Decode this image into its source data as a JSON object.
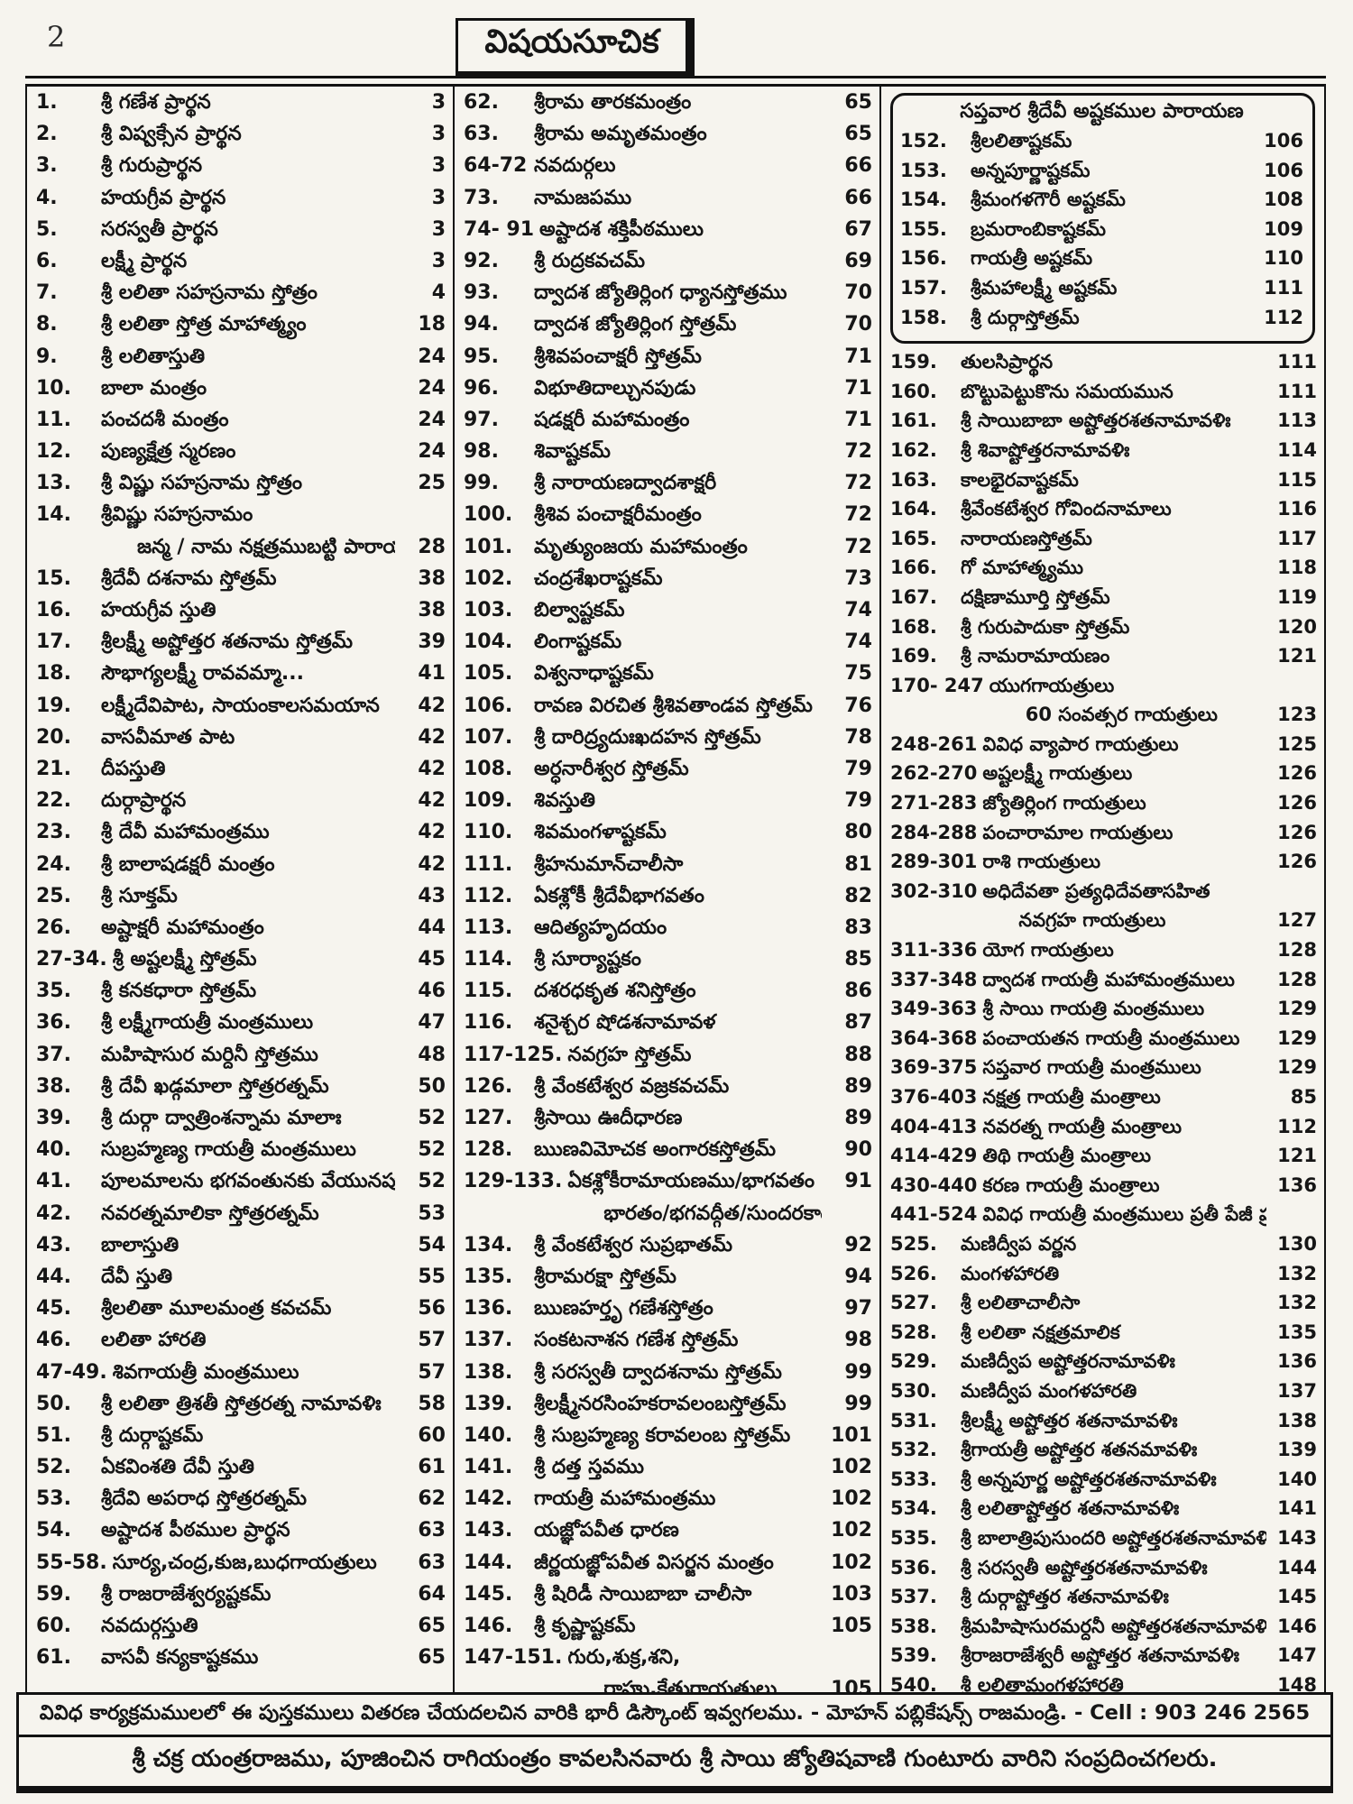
{
  "page": {
    "number": "2",
    "title": "విషయసూచిక"
  },
  "columns": {
    "col1": {
      "items": [
        {
          "n": "1.",
          "t": "శ్రీ గణేశ ప్రార్థన",
          "p": "3"
        },
        {
          "n": "2.",
          "t": "శ్రీ విష్వక్సేన ప్రార్థన",
          "p": "3"
        },
        {
          "n": "3.",
          "t": "శ్రీ గురుప్రార్థన",
          "p": "3"
        },
        {
          "n": "4.",
          "t": "హయగ్రీవ ప్రార్థన",
          "p": "3"
        },
        {
          "n": "5.",
          "t": "సరస్వతీ ప్రార్థన",
          "p": "3"
        },
        {
          "n": "6.",
          "t": "లక్ష్మీ ప్రార్థన",
          "p": "3"
        },
        {
          "n": "7.",
          "t": "శ్రీ లలితా సహస్రనామ స్తోత్రం",
          "p": "4"
        },
        {
          "n": "8.",
          "t": "శ్రీ లలితా స్తోత్ర మాహాత్మ్యం",
          "p": "18"
        },
        {
          "n": "9.",
          "t": "శ్రీ లలితాస్తుతి",
          "p": "24"
        },
        {
          "n": "10.",
          "t": "బాలా మంత్రం",
          "p": "24"
        },
        {
          "n": "11.",
          "t": "పంచదశీ మంత్రం",
          "p": "24"
        },
        {
          "n": "12.",
          "t": "పుణ్యక్షేత్ర స్మరణం",
          "p": "24"
        },
        {
          "n": "13.",
          "t": "శ్రీ విష్ణు సహస్రనామ స్తోత్రం",
          "p": "25"
        },
        {
          "n": "14.",
          "t": "శ్రీవిష్ణు సహస్రనామం",
          "p": "",
          "t2": "జన్మ / నామ నక్షత్రముబట్టి పారాయణ",
          "p2": "28"
        },
        {
          "n": "15.",
          "t": "శ్రీదేవీ  దశనామ స్తోత్రమ్",
          "p": "38"
        },
        {
          "n": "16.",
          "t": "హయగ్రీవ స్తుతి",
          "p": "38"
        },
        {
          "n": "17.",
          "t": "శ్రీలక్ష్మీ అష్టోత్తర శతనామ స్తోత్రమ్",
          "p": "39"
        },
        {
          "n": "18.",
          "t": "సౌభాగ్యలక్ష్మీ రావవమ్మా...",
          "p": "41"
        },
        {
          "n": "19.",
          "t": "లక్ష్మీదేవిపాట, సాయంకాలసమయాన",
          "p": "42"
        },
        {
          "n": "20.",
          "t": "వాసవీమాత పాట",
          "p": "42"
        },
        {
          "n": "21.",
          "t": "దీపస్తుతి",
          "p": "42"
        },
        {
          "n": "22.",
          "t": "దుర్గాప్రార్థన",
          "p": "42"
        },
        {
          "n": "23.",
          "t": "శ్రీ దేవీ మహామంత్రము",
          "p": "42"
        },
        {
          "n": "24.",
          "t": "శ్రీ బాలాషడక్షరీ మంత్రం",
          "p": "42"
        },
        {
          "n": "25.",
          "t": "శ్రీ సూక్తమ్",
          "p": "43"
        },
        {
          "n": "26.",
          "t": "అష్టాక్షరీ మహామంత్రం",
          "p": "44"
        },
        {
          "n": "27-34.",
          "t": "శ్రీ అష్టలక్ష్మీ స్తోత్రమ్",
          "p": "45"
        },
        {
          "n": "35.",
          "t": "శ్రీ కనకధారా స్తోత్రమ్",
          "p": "46"
        },
        {
          "n": "36.",
          "t": "శ్రీ లక్ష్మీగాయత్రీ మంత్రములు",
          "p": "47"
        },
        {
          "n": "37.",
          "t": "మహిషాసుర మర్దినీ స్తోత్రము",
          "p": "48"
        },
        {
          "n": "38.",
          "t": "శ్రీ దేవీ ఖడ్గమాలా స్తోత్రరత్నమ్",
          "p": "50"
        },
        {
          "n": "39.",
          "t": "శ్రీ దుర్గా ద్వాత్రింశన్నామ మాలాః",
          "p": "52"
        },
        {
          "n": "40.",
          "t": "సుబ్రహ్మణ్య గాయత్రీ మంత్రములు",
          "p": "52"
        },
        {
          "n": "41.",
          "t": "పూలమాలను భగవంతునకు వేయునపుడు",
          "p": "52"
        },
        {
          "n": "42.",
          "t": "నవరత్నమాలికా స్తోత్రరత్నమ్",
          "p": "53"
        },
        {
          "n": "43.",
          "t": "బాలాస్తుతి",
          "p": "54"
        },
        {
          "n": "44.",
          "t": "దేవీ స్తుతి",
          "p": "55"
        },
        {
          "n": "45.",
          "t": "శ్రీలలితా మూలమంత్ర కవచమ్",
          "p": "56"
        },
        {
          "n": "46.",
          "t": "లలితా హారతి",
          "p": "57"
        },
        {
          "n": "47-49.",
          "t": "శివగాయత్రీ మంత్రములు",
          "p": "57"
        },
        {
          "n": "50.",
          "t": "శ్రీ లలితా త్రిశతీ స్తోత్రరత్న నామావళిః",
          "p": "58"
        },
        {
          "n": "51.",
          "t": "శ్రీ దుర్గాష్టకమ్",
          "p": "60"
        },
        {
          "n": "52.",
          "t": "ఏకవింశతి దేవీ స్తుతి",
          "p": "61"
        },
        {
          "n": "53.",
          "t": "శ్రీదేవి అపరాధ స్తోత్రరత్నమ్",
          "p": "62"
        },
        {
          "n": "54.",
          "t": "అష్టాదశ పీఠముల ప్రార్థన",
          "p": "63"
        },
        {
          "n": "55-58.",
          "t": "సూర్య,చంద్ర,కుజ,బుధగాయత్రులు",
          "p": "63"
        },
        {
          "n": "59.",
          "t": "శ్రీ రాజరాజేశ్వర్యష్టకమ్",
          "p": "64"
        },
        {
          "n": "60.",
          "t": "నవదుర్గస్తుతి",
          "p": "65"
        },
        {
          "n": "61.",
          "t": "వాసవీ కన్యకాష్టకము",
          "p": "65"
        }
      ]
    },
    "col2": {
      "items": [
        {
          "n": "62.",
          "t": "శ్రీరామ తారకమంత్రం",
          "p": "65"
        },
        {
          "n": "63.",
          "t": "శ్రీరామ అమృతమంత్రం",
          "p": "65"
        },
        {
          "n": "64-72",
          "t": "నవదుర్గలు",
          "p": "66"
        },
        {
          "n": "73.",
          "t": "నామజపము",
          "p": "66"
        },
        {
          "n": "74- 91",
          "t": "అష్టాదశ శక్తిపీఠములు",
          "p": "67"
        },
        {
          "n": "92.",
          "t": "శ్రీ రుద్రకవచమ్",
          "p": "69"
        },
        {
          "n": "93.",
          "t": "ద్వాదశ జ్యోతిర్లింగ ధ్యానస్తోత్రము",
          "p": "70"
        },
        {
          "n": "94.",
          "t": "ద్వాదశ జ్యోతిర్లింగ స్తోత్రమ్",
          "p": "70"
        },
        {
          "n": "95.",
          "t": "శ్రీశివపంచాక్షరీ స్తోత్రమ్",
          "p": "71"
        },
        {
          "n": "96.",
          "t": "విభూతిదాల్చునపుడు",
          "p": "71"
        },
        {
          "n": "97.",
          "t": "షడక్షరీ మహామంత్రం",
          "p": "71"
        },
        {
          "n": "98.",
          "t": "శివాష్టకమ్",
          "p": "72"
        },
        {
          "n": "99.",
          "t": "శ్రీ నారాయణద్వాదశాక్షరీ",
          "p": "72"
        },
        {
          "n": "100.",
          "t": "శ్రీశివ పంచాక్షరీమంత్రం",
          "p": "72"
        },
        {
          "n": "101.",
          "t": "మృత్యుంజయ మహామంత్రం",
          "p": "72"
        },
        {
          "n": "102.",
          "t": "చంద్రశేఖరాష్టకమ్",
          "p": "73"
        },
        {
          "n": "103.",
          "t": "బిల్వాష్టకమ్",
          "p": "74"
        },
        {
          "n": "104.",
          "t": "లింగాష్టకమ్",
          "p": "74"
        },
        {
          "n": "105.",
          "t": "విశ్వనాధాష్టకమ్",
          "p": "75"
        },
        {
          "n": "106.",
          "t": "రావణ విరచిత శ్రీశివతాండవ స్తోత్రమ్",
          "p": "76"
        },
        {
          "n": "107.",
          "t": "శ్రీ దారిద్ర్యదుఃఖదహన స్తోత్రమ్",
          "p": "78"
        },
        {
          "n": "108.",
          "t": "అర్ధనారీశ్వర స్తోత్రమ్",
          "p": "79"
        },
        {
          "n": "109.",
          "t": "శివస్తుతి",
          "p": "79"
        },
        {
          "n": "110.",
          "t": "శివమంగళాష్టకమ్",
          "p": "80"
        },
        {
          "n": "111.",
          "t": "శ్రీహనుమాన్‌చాలీసా",
          "p": "81"
        },
        {
          "n": "112.",
          "t": "ఏకశ్లోకీ శ్రీదేవీభాగవతం",
          "p": "82"
        },
        {
          "n": "113.",
          "t": "ఆదిత్యహృదయం",
          "p": "83"
        },
        {
          "n": "114.",
          "t": "శ్రీ సూర్యాష్టకం",
          "p": "85"
        },
        {
          "n": "115.",
          "t": "దశరధకృత శనిస్తోత్రం",
          "p": "86"
        },
        {
          "n": "116.",
          "t": "శనైశ్చర షోడశనామావళ",
          "p": "87"
        },
        {
          "n": "117-125.",
          "t": "నవగ్రహ స్తోత్రమ్",
          "p": "88"
        },
        {
          "n": "126.",
          "t": "శ్రీ వేంకటేశ్వర వజ్రకవచమ్",
          "p": "89"
        },
        {
          "n": "127.",
          "t": "శ్రీసాయి ఊదీధారణ",
          "p": "89"
        },
        {
          "n": "128.",
          "t": "ఋణవిమోచక అంగారకస్తోత్రమ్",
          "p": "90"
        },
        {
          "n": "129-133.",
          "t": "ఏకశ్లోకీరామాయణము/భాగవతం",
          "p": "91",
          "t2": "భారతం/భగవద్గీత/సుందరకాండ",
          "p2": ""
        },
        {
          "n": "134.",
          "t": "శ్రీ వేంకటేశ్వర సుప్రభాతమ్",
          "p": "92"
        },
        {
          "n": "135.",
          "t": "శ్రీరామరక్షా స్తోత్రమ్",
          "p": "94"
        },
        {
          "n": "136.",
          "t": "ఋణహర్తృ గణేశస్తోత్రం",
          "p": "97"
        },
        {
          "n": "137.",
          "t": "సంకటనాశన గణేశ స్తోత్రమ్",
          "p": "98"
        },
        {
          "n": "138.",
          "t": "శ్రీ సరస్వతీ ద్వాదశనామ స్తోత్రమ్",
          "p": "99"
        },
        {
          "n": "139.",
          "t": "శ్రీలక్ష్మీనరసింహకరావలంబస్తోత్రమ్",
          "p": "99"
        },
        {
          "n": "140.",
          "t": "శ్రీ సుబ్రహ్మణ్య కరావలంబ స్తోత్రమ్",
          "p": "101"
        },
        {
          "n": "141.",
          "t": "శ్రీ దత్త స్తవము",
          "p": "102"
        },
        {
          "n": "142.",
          "t": "గాయత్రీ మహామంత్రము",
          "p": "102"
        },
        {
          "n": "143.",
          "t": "యజ్ఞోపవీత ధారణ",
          "p": "102"
        },
        {
          "n": "144.",
          "t": "జీర్ణయజ్ఞోపవీత విసర్జన మంత్రం",
          "p": "102"
        },
        {
          "n": "145.",
          "t": "శ్రీ షిరిడీ సాయిబాబా చాలీసా",
          "p": "103"
        },
        {
          "n": "146.",
          "t": "శ్రీ కృష్ణాష్టకమ్",
          "p": "105"
        },
        {
          "n": "147-151.",
          "t": "గురు,శుక్ర,శని,",
          "p": "",
          "t2": "రాహు,కేతుగాయత్రులు",
          "p2": "105"
        }
      ]
    },
    "col3": {
      "box": {
        "header": "సప్తవార శ్రీదేవీ అష్టకముల పారాయణ",
        "items": [
          {
            "n": "152.",
            "t": "శ్రీలలితాష్టకమ్",
            "p": "106"
          },
          {
            "n": "153.",
            "t": "అన్నపూర్ణాష్టకమ్",
            "p": "106"
          },
          {
            "n": "154.",
            "t": "శ్రీమంగళగౌరీ అష్టకమ్",
            "p": "108"
          },
          {
            "n": "155.",
            "t": "బ్రమరాంబికాష్టకమ్",
            "p": "109"
          },
          {
            "n": "156.",
            "t": "గాయత్రీ అష్టకమ్",
            "p": "110"
          },
          {
            "n": "157.",
            "t": "శ్రీమహాలక్ష్మీ అష్టకమ్",
            "p": "111"
          },
          {
            "n": "158.",
            "t": "శ్రీ దుర్గాస్తోత్రమ్",
            "p": "112"
          }
        ]
      },
      "items": [
        {
          "n": "159.",
          "t": "తులసిప్రార్థన",
          "p": "111"
        },
        {
          "n": "160.",
          "t": "బొట్టుపెట్టుకొను సమయమున",
          "p": "111"
        },
        {
          "n": "161.",
          "t": "శ్రీ సాయిబాబా అష్టోత్తరశతనామావళిః",
          "p": "113"
        },
        {
          "n": "162.",
          "t": "శ్రీ శివాష్టోత్తరనామావళిః",
          "p": "114"
        },
        {
          "n": "163.",
          "t": "కాలభైరవాష్టకమ్",
          "p": "115"
        },
        {
          "n": "164.",
          "t": "శ్రీవేంకటేశ్వర గోవిందనామాలు",
          "p": "116"
        },
        {
          "n": "165.",
          "t": "నారాయణస్తోత్రమ్",
          "p": "117"
        },
        {
          "n": "166.",
          "t": "గో మాహాత్మ్యము",
          "p": "118"
        },
        {
          "n": "167.",
          "t": "దక్షిణామూర్తి స్తోత్రమ్",
          "p": "119"
        },
        {
          "n": "168.",
          "t": "శ్రీ గురుపాదుకా స్తోత్రమ్",
          "p": "120"
        },
        {
          "n": "169.",
          "t": "శ్రీ నామరామాయణం",
          "p": "121"
        },
        {
          "n": "170- 247",
          "t": "యుగగాయత్రులు",
          "p": "",
          "t2": "60 సంవత్సర గాయత్రులు",
          "p2": "123"
        },
        {
          "n": "248-261",
          "t": "వివిధ వ్యాపార గాయత్రులు",
          "p": "125"
        },
        {
          "n": "262-270",
          "t": "అష్టలక్ష్మీ గాయత్రులు",
          "p": "126"
        },
        {
          "n": "271-283",
          "t": "జ్యోతిర్లింగ గాయత్రులు",
          "p": "126"
        },
        {
          "n": "284-288",
          "t": "పంచారామాల గాయత్రులు",
          "p": "126"
        },
        {
          "n": "289-301",
          "t": "రాశి గాయత్రులు",
          "p": "126"
        },
        {
          "n": "302-310",
          "t": "అధిదేవతా ప్రత్యధిదేవతాసహిత",
          "p": "",
          "t2": "నవగ్రహ గాయత్రులు",
          "p2": "127"
        },
        {
          "n": "311-336",
          "t": "యోగ గాయత్రులు",
          "p": "128"
        },
        {
          "n": "337-348",
          "t": "ద్వాదశ గాయత్రీ మహామంత్రములు",
          "p": "128"
        },
        {
          "n": "349-363",
          "t": "శ్రీ సాయి గాయత్రి మంత్రములు",
          "p": "129"
        },
        {
          "n": "364-368",
          "t": "పంచాయతన గాయత్రీ మంత్రములు",
          "p": "129"
        },
        {
          "n": "369-375",
          "t": "సప్తవార గాయత్రీ మంత్రములు",
          "p": "129"
        },
        {
          "n": "376-403",
          "t": "నక్షత్ర గాయత్రీ మంత్రాలు",
          "p": "85"
        },
        {
          "n": "404-413",
          "t": "నవరత్న గాయత్రీ మంత్రాలు",
          "p": "112"
        },
        {
          "n": "414-429",
          "t": "తిథి గాయత్రీ మంత్రాలు",
          "p": "121"
        },
        {
          "n": "430-440",
          "t": "కరణ గాయత్రీ మంత్రాలు",
          "p": "136"
        },
        {
          "n": "441-524",
          "t": "వివిధ గాయత్రీ మంత్రములు ప్రతీ పేజీ ప్రక్కన",
          "p": ""
        },
        {
          "n": "525.",
          "t": "మణిద్వీప వర్ణన",
          "p": "130"
        },
        {
          "n": "526.",
          "t": "మంగళహారతి",
          "p": "132"
        },
        {
          "n": "527.",
          "t": "శ్రీ లలితాచాలీసా",
          "p": "132"
        },
        {
          "n": "528.",
          "t": "శ్రీ లలితా నక్షత్రమాలిక",
          "p": "135"
        },
        {
          "n": "529.",
          "t": "మణిద్వీప అష్టోత్తరనామావళిః",
          "p": "136"
        },
        {
          "n": "530.",
          "t": "మణిద్వీప మంగళహారతి",
          "p": "137"
        },
        {
          "n": "531.",
          "t": "శ్రీలక్ష్మీ అష్టోత్తర శతనామావళిః",
          "p": "138"
        },
        {
          "n": "532.",
          "t": "శ్రీగాయత్రీ అష్టోత్తర శతనమావళిః",
          "p": "139"
        },
        {
          "n": "533.",
          "t": "శ్రీ అన్నపూర్ణ అష్టోత్తరశతనామావళిః",
          "p": "140"
        },
        {
          "n": "534.",
          "t": "శ్రీ లలితాష్టోత్తర శతనామావళిః",
          "p": "141"
        },
        {
          "n": "535.",
          "t": "శ్రీ బాలాత్రిపుసుందరి అష్టోత్తరశతనామావళిః",
          "p": "143"
        },
        {
          "n": "536.",
          "t": "శ్రీ సరస్వతీ అష్టోత్తరశతనామావళిః",
          "p": "144"
        },
        {
          "n": "537.",
          "t": "శ్రీ దుర్గాష్టోత్తర శతనామావళిః",
          "p": "145"
        },
        {
          "n": "538.",
          "t": "శ్రీమహిషాసురమర్దనీ అష్టోత్తరశతనామావళిః",
          "p": "146"
        },
        {
          "n": "539.",
          "t": "శ్రీరాజరాజేశ్వరీ అష్టోత్తర శతనామావళిః",
          "p": "147"
        },
        {
          "n": "540.",
          "t": "శ్రీ లలితామంగళహారతి",
          "p": "148"
        }
      ]
    }
  },
  "footer": {
    "line1": "వివిధ కార్యక్రమములలో ఈ పుస్తకములు వితరణ చేయదలచిన వారికి భారీ డిస్కౌంట్ ఇవ్వగలము. - మోహన్ పబ్లికేషన్స్ రాజమండ్రి. - Cell : 903 246 2565",
    "line2": "శ్రీ చక్ర యంత్రరాజము, పూజించిన రాగియంత్రం కావలసినవారు శ్రీ సాయి జ్యోతిషవాణి గుంటూరు వారిని సంప్రదించగలరు."
  }
}
